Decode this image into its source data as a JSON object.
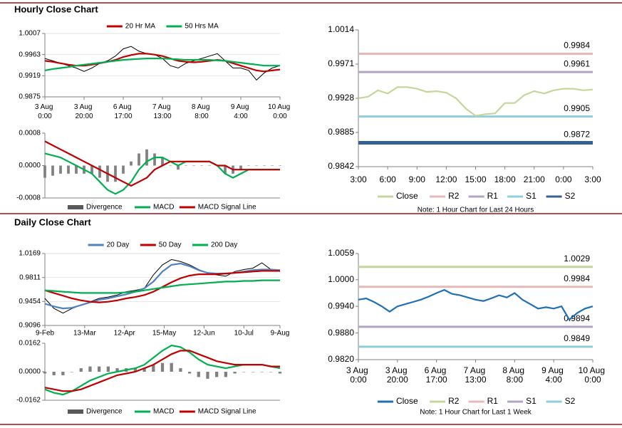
{
  "headings": [
    "Hourly Close Chart",
    "Daily Close Chart"
  ],
  "chart_data": [
    {
      "type": "line",
      "grid": true,
      "legend": "top",
      "xlim": [
        0,
        120
      ],
      "xticks": [
        {
          "value": 0,
          "label": "3 Aug 0:00"
        },
        {
          "value": 20,
          "label": "3 Aug 20:00"
        },
        {
          "value": 40,
          "label": "6 Aug 17:00"
        },
        {
          "value": 60,
          "label": "7 Aug 13:00"
        },
        {
          "value": 80,
          "label": "8 Aug 8:00"
        },
        {
          "value": 100,
          "label": "9 Aug 4:00"
        },
        {
          "value": 120,
          "label": "10 Aug 0:00"
        }
      ],
      "ylim": [
        0.9875,
        1.0007
      ],
      "yticks": [
        0.9875,
        0.9919,
        0.9963,
        1.0007
      ],
      "x": [
        0,
        4,
        8,
        12,
        16,
        20,
        24,
        28,
        32,
        36,
        40,
        44,
        48,
        52,
        56,
        60,
        64,
        68,
        72,
        76,
        80,
        84,
        88,
        92,
        96,
        100,
        104,
        108,
        112,
        116,
        120
      ],
      "series": [
        {
          "color": "#000000",
          "values": [
            0.9955,
            0.995,
            0.9945,
            0.994,
            0.9935,
            0.9928,
            0.9935,
            0.9945,
            0.995,
            0.996,
            0.9975,
            0.998,
            0.997,
            0.9965,
            0.9963,
            0.9955,
            0.994,
            0.9935,
            0.9945,
            0.995,
            0.9955,
            0.996,
            0.9965,
            0.995,
            0.9935,
            0.9935,
            0.993,
            0.991,
            0.9925,
            0.9935,
            0.994
          ]
        },
        {
          "name": "20 Hr MA",
          "color": "#c00000",
          "values": [
            0.995,
            0.9948,
            0.9945,
            0.9942,
            0.994,
            0.994,
            0.9942,
            0.9945,
            0.9948,
            0.9952,
            0.9958,
            0.9962,
            0.9965,
            0.9965,
            0.9963,
            0.996,
            0.9955,
            0.995,
            0.9948,
            0.9947,
            0.9948,
            0.995,
            0.9952,
            0.995,
            0.9945,
            0.994,
            0.9935,
            0.993,
            0.9928,
            0.993,
            0.9932
          ]
        },
        {
          "name": "50 Hrs MA",
          "color": "#00b050",
          "values": [
            0.993,
            0.9933,
            0.9935,
            0.9937,
            0.994,
            0.9942,
            0.9944,
            0.9946,
            0.9948,
            0.995,
            0.9952,
            0.9953,
            0.9954,
            0.9955,
            0.9955,
            0.9955,
            0.9954,
            0.9953,
            0.9952,
            0.9952,
            0.9952,
            0.9952,
            0.9951,
            0.995,
            0.9948,
            0.9946,
            0.9944,
            0.9942,
            0.994,
            0.994,
            0.994
          ]
        }
      ]
    },
    {
      "type": "combo",
      "grid": false,
      "legend": "bottom",
      "xlim": [
        0,
        120
      ],
      "ylim": [
        -0.0008,
        0.0008
      ],
      "yticks": [
        -0.0008,
        {
          "value": 0,
          "label": "0.0000"
        },
        0.0008
      ],
      "x": [
        0,
        4,
        8,
        12,
        16,
        20,
        24,
        28,
        32,
        36,
        40,
        44,
        48,
        52,
        56,
        60,
        64,
        68,
        72,
        76,
        80,
        84,
        88,
        92,
        96,
        100,
        104,
        108,
        112,
        116,
        120
      ],
      "series": [
        {
          "name": "Divergence",
          "style": "bar",
          "color": "#808080",
          "values": [
            -0.0003,
            -0.00025,
            -0.0002,
            -0.0002,
            -0.0002,
            -0.0002,
            -0.0002,
            -0.0003,
            -0.0004,
            -0.0004,
            -0.0002,
            0.0001,
            0.0003,
            0.0004,
            0.0003,
            0.0002,
            0.0,
            -0.0001,
            0.0,
            0.0,
            0.0,
            0.0,
            0.0,
            -0.0002,
            -0.0002,
            -0.0001,
            0.0,
            0.0,
            0.0,
            0.0,
            0.0
          ]
        },
        {
          "name": "MACD",
          "color": "#00b050",
          "values": [
            0.0003,
            0.00025,
            0.0002,
            0.0001,
            0.0,
            -0.0001,
            -0.0002,
            -0.0004,
            -0.0006,
            -0.0007,
            -0.0006,
            -0.0004,
            -0.0001,
            0.0001,
            0.0002,
            0.0002,
            0.0001,
            0.0,
            0.0001,
            0.0001,
            0.0001,
            0.0001,
            0.0,
            -0.0002,
            -0.0003,
            -0.0002,
            -0.0001,
            -0.0001,
            -0.0001,
            -0.0001,
            -0.0001
          ]
        },
        {
          "name": "MACD Signal Line",
          "color": "#c00000",
          "values": [
            0.0006,
            0.0005,
            0.0004,
            0.0003,
            0.0002,
            0.0001,
            0.0,
            -0.0001,
            -0.0002,
            -0.0003,
            -0.0004,
            -0.0005,
            -0.0004,
            -0.0003,
            -0.0001,
            0.0,
            0.0001,
            0.0001,
            0.0001,
            0.0001,
            0.0001,
            0.0001,
            0.0,
            0.0,
            -0.0001,
            -0.0001,
            -0.0001,
            -0.0001,
            -0.0001,
            -0.0001,
            -0.0001
          ]
        }
      ]
    },
    {
      "type": "line",
      "grid": false,
      "legend": "bottom",
      "note": "Note: 1 Hour Chart for Last 24 Hours",
      "xlim": [
        0,
        24
      ],
      "xticks": [
        {
          "value": 0,
          "label": "3:00"
        },
        {
          "value": 3,
          "label": "6:00"
        },
        {
          "value": 6,
          "label": "9:00"
        },
        {
          "value": 9,
          "label": "12:00"
        },
        {
          "value": 12,
          "label": "15:00"
        },
        {
          "value": 15,
          "label": "18:00"
        },
        {
          "value": 18,
          "label": "21:00"
        },
        {
          "value": 21,
          "label": "0:00"
        },
        {
          "value": 24,
          "label": "3:00"
        }
      ],
      "ylim": [
        0.9842,
        1.0014
      ],
      "yticks": [
        0.9842,
        0.9885,
        0.9928,
        0.9971,
        1.0014
      ],
      "x": [
        0,
        1,
        2,
        3,
        4,
        5,
        6,
        7,
        8,
        9,
        10,
        11,
        12,
        13,
        14,
        15,
        16,
        17,
        18,
        19,
        20,
        21,
        22,
        23,
        24
      ],
      "series": [
        {
          "name": "Close",
          "color": "#c4d79b",
          "values": [
            0.9928,
            0.993,
            0.9938,
            0.9934,
            0.9942,
            0.9942,
            0.994,
            0.9936,
            0.9937,
            0.9935,
            0.9928,
            0.9915,
            0.9906,
            0.9908,
            0.9909,
            0.9922,
            0.9922,
            0.9932,
            0.9937,
            0.9934,
            0.9938,
            0.994,
            0.994,
            0.9938,
            0.9939
          ]
        }
      ],
      "levels": [
        {
          "name": "R2",
          "value": 0.9984,
          "color": "#e6b9b8"
        },
        {
          "name": "R1",
          "value": 0.9961,
          "color": "#b3a2c7"
        },
        {
          "name": "S1",
          "value": 0.9905,
          "color": "#92cddc"
        },
        {
          "name": "S2",
          "value": 0.9872,
          "color": "#366092"
        }
      ]
    },
    {
      "type": "line",
      "grid": true,
      "legend": "top",
      "xlim": [
        0,
        130
      ],
      "xticks": [
        {
          "value": 0,
          "label": "9-Feb"
        },
        {
          "value": 22,
          "label": "13-Mar"
        },
        {
          "value": 44,
          "label": "12-Apr"
        },
        {
          "value": 66,
          "label": "15-May"
        },
        {
          "value": 88,
          "label": "12-Jun"
        },
        {
          "value": 110,
          "label": "10-Jul"
        },
        {
          "value": 130,
          "label": "9-Aug"
        }
      ],
      "ylim": [
        0.9096,
        1.0169
      ],
      "yticks": [
        0.9096,
        0.9454,
        0.9811,
        1.0169
      ],
      "x": [
        0,
        5,
        10,
        15,
        20,
        25,
        30,
        35,
        40,
        45,
        50,
        55,
        60,
        65,
        70,
        75,
        80,
        85,
        90,
        95,
        100,
        105,
        110,
        115,
        120,
        125,
        130
      ],
      "series": [
        {
          "color": "#000000",
          "values": [
            0.95,
            0.935,
            0.928,
            0.935,
            0.94,
            0.945,
            0.95,
            0.952,
            0.955,
            0.96,
            0.962,
            0.965,
            0.985,
            1.0,
            1.008,
            1.005,
            1.0,
            0.993,
            0.988,
            0.985,
            0.983,
            0.99,
            0.993,
            0.995,
            1.003,
            0.993,
            0.99
          ]
        },
        {
          "name": "20 Day",
          "color": "#4f81bd",
          "values": [
            0.942,
            0.938,
            0.935,
            0.936,
            0.94,
            0.944,
            0.948,
            0.95,
            0.953,
            0.956,
            0.96,
            0.965,
            0.975,
            0.99,
            1.0,
            1.002,
            0.998,
            0.992,
            0.988,
            0.987,
            0.987,
            0.988,
            0.99,
            0.992,
            0.993,
            0.993,
            0.992
          ]
        },
        {
          "name": "50 Day",
          "color": "#c00000",
          "values": [
            0.962,
            0.958,
            0.954,
            0.95,
            0.947,
            0.945,
            0.944,
            0.945,
            0.947,
            0.95,
            0.952,
            0.955,
            0.96,
            0.967,
            0.974,
            0.98,
            0.984,
            0.986,
            0.986,
            0.986,
            0.987,
            0.988,
            0.989,
            0.99,
            0.991,
            0.991,
            0.991
          ]
        },
        {
          "name": "200 Day",
          "color": "#00b050",
          "values": [
            0.962,
            0.961,
            0.96,
            0.959,
            0.958,
            0.958,
            0.958,
            0.958,
            0.958,
            0.959,
            0.96,
            0.962,
            0.964,
            0.966,
            0.968,
            0.97,
            0.971,
            0.972,
            0.973,
            0.974,
            0.975,
            0.975,
            0.976,
            0.976,
            0.977,
            0.977,
            0.977
          ]
        }
      ]
    },
    {
      "type": "combo",
      "grid": false,
      "legend": "bottom",
      "xlim": [
        0,
        130
      ],
      "ylim": [
        -0.0162,
        0.0162
      ],
      "yticks": [
        -0.0162,
        {
          "value": 0,
          "label": "0.0000"
        },
        0.0162
      ],
      "x": [
        0,
        5,
        10,
        15,
        20,
        25,
        30,
        35,
        40,
        45,
        50,
        55,
        60,
        65,
        70,
        75,
        80,
        85,
        90,
        95,
        100,
        105,
        110,
        115,
        120,
        125,
        130
      ],
      "series": [
        {
          "name": "Divergence",
          "style": "bar",
          "color": "#808080",
          "values": [
            -0.001,
            -0.002,
            -0.002,
            0.0,
            0.002,
            0.003,
            0.003,
            0.003,
            0.002,
            0.002,
            0.002,
            0.002,
            0.004,
            0.005,
            0.005,
            0.002,
            -0.001,
            -0.003,
            -0.004,
            -0.003,
            -0.003,
            -0.001,
            0.0,
            0.0,
            0.0,
            0.0,
            -0.001
          ]
        },
        {
          "name": "MACD",
          "color": "#00b050",
          "values": [
            -0.01,
            -0.012,
            -0.013,
            -0.011,
            -0.008,
            -0.005,
            -0.003,
            -0.001,
            0.0,
            0.001,
            0.002,
            0.004,
            0.008,
            0.012,
            0.015,
            0.014,
            0.011,
            0.007,
            0.004,
            0.003,
            0.002,
            0.003,
            0.004,
            0.004,
            0.004,
            0.003,
            0.002
          ]
        },
        {
          "name": "MACD Signal Line",
          "color": "#c00000",
          "values": [
            -0.009,
            -0.01,
            -0.011,
            -0.011,
            -0.01,
            -0.008,
            -0.006,
            -0.004,
            -0.002,
            -0.001,
            0.0,
            0.002,
            0.004,
            0.007,
            0.01,
            0.012,
            0.012,
            0.01,
            0.008,
            0.006,
            0.005,
            0.004,
            0.004,
            0.004,
            0.004,
            0.003,
            0.003
          ]
        }
      ]
    },
    {
      "type": "line",
      "grid": false,
      "legend": "bottom",
      "note": "Note: 1 Hour Chart for Last 1 Week",
      "xlim": [
        0,
        120
      ],
      "xticks": [
        {
          "value": 0,
          "label": "3 Aug 0:00"
        },
        {
          "value": 20,
          "label": "3 Aug 20:00"
        },
        {
          "value": 40,
          "label": "6 Aug 17:00"
        },
        {
          "value": 60,
          "label": "7 Aug 13:00"
        },
        {
          "value": 80,
          "label": "8 Aug 8:00"
        },
        {
          "value": 100,
          "label": "9 Aug 4:00"
        },
        {
          "value": 120,
          "label": "10 Aug 0:00"
        }
      ],
      "ylim": [
        0.982,
        1.0059
      ],
      "yticks": [
        {
          "value": 0.982,
          "label": "0.9820"
        },
        {
          "value": 0.988,
          "label": "0.9880"
        },
        {
          "value": 0.994,
          "label": "0.9940"
        },
        {
          "value": 1,
          "label": "1.0000"
        },
        1.0059
      ],
      "x": [
        0,
        4,
        8,
        12,
        16,
        20,
        24,
        28,
        32,
        36,
        40,
        44,
        48,
        52,
        56,
        60,
        64,
        68,
        72,
        76,
        80,
        84,
        88,
        92,
        96,
        100,
        104,
        108,
        112,
        116,
        120
      ],
      "series": [
        {
          "name": "Close",
          "color": "#1f6fb5",
          "values": [
            0.9955,
            0.9958,
            0.995,
            0.994,
            0.9928,
            0.994,
            0.9945,
            0.995,
            0.9955,
            0.9962,
            0.997,
            0.9977,
            0.9968,
            0.9965,
            0.996,
            0.9955,
            0.9952,
            0.9958,
            0.9965,
            0.996,
            0.997,
            0.9955,
            0.9945,
            0.9935,
            0.9938,
            0.9935,
            0.994,
            0.991,
            0.9925,
            0.9935,
            0.994
          ]
        }
      ],
      "levels": [
        {
          "name": "R2",
          "value": 1.0029,
          "color": "#c4d79b"
        },
        {
          "name": "R1",
          "value": 0.9984,
          "color": "#e6b9b8"
        },
        {
          "name": "S1",
          "value": 0.9894,
          "color": "#b3a2c7"
        },
        {
          "name": "S2",
          "value": 0.9849,
          "color": "#92cddc"
        }
      ]
    }
  ]
}
